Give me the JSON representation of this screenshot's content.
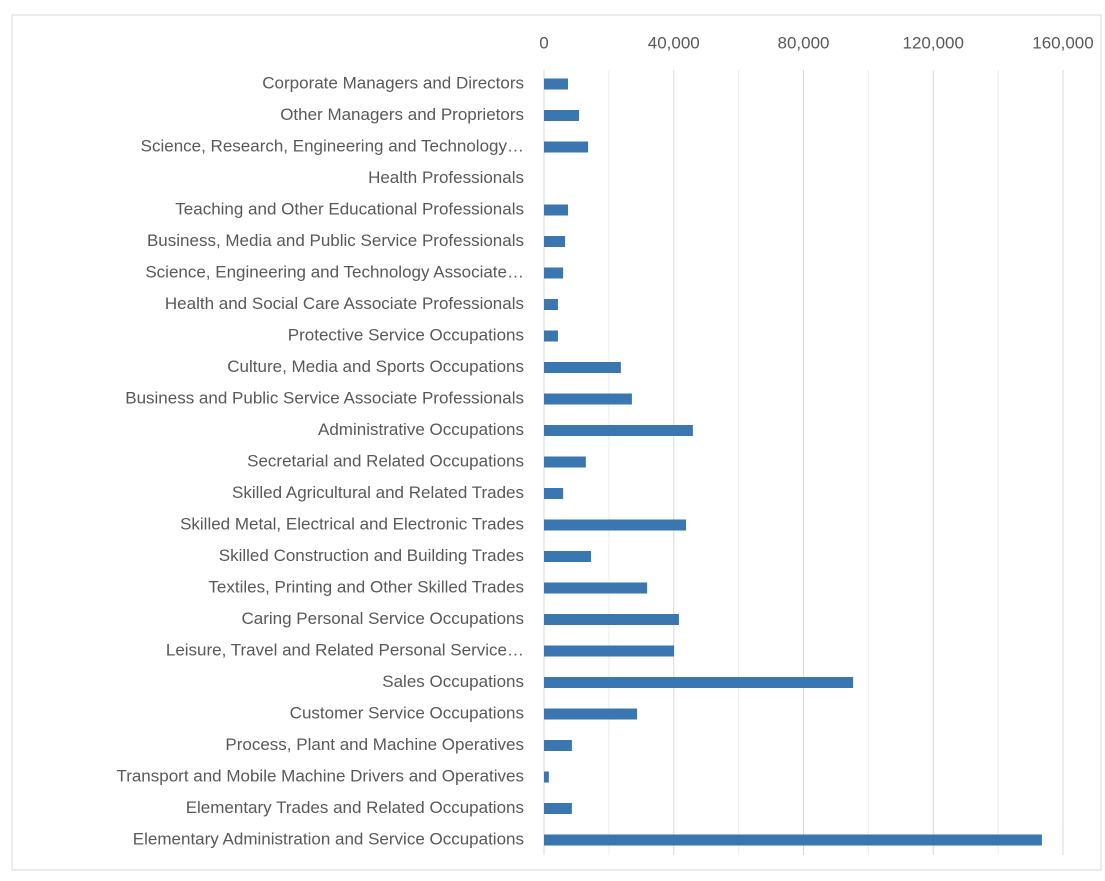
{
  "chart_data": {
    "type": "bar",
    "orientation": "horizontal",
    "color": "#3a76b0",
    "categories": [
      "Corporate Managers and Directors",
      "Other Managers and Proprietors",
      "Science, Research, Engineering and Technology…",
      "Health Professionals",
      "Teaching and Other Educational Professionals",
      "Business, Media and Public Service Professionals",
      "Science, Engineering and Technology Associate…",
      "Health and Social Care Associate Professionals",
      "Protective Service Occupations",
      "Culture, Media and Sports Occupations",
      "Business and Public Service Associate Professionals",
      "Administrative Occupations",
      "Secretarial and Related Occupations",
      "Skilled Agricultural and Related Trades",
      "Skilled Metal, Electrical and Electronic Trades",
      "Skilled Construction and Building Trades",
      "Textiles, Printing and Other Skilled Trades",
      "Caring Personal Service Occupations",
      "Leisure, Travel and Related Personal Service…",
      "Sales Occupations",
      "Customer Service Occupations",
      "Process, Plant and Machine Operatives",
      "Transport and Mobile Machine Drivers and Operatives",
      "Elementary Trades and Related Occupations",
      "Elementary Administration and Service Occupations"
    ],
    "values": [
      7400,
      10800,
      13600,
      0,
      7400,
      6500,
      5900,
      4300,
      4300,
      23700,
      27100,
      45900,
      12900,
      5900,
      43800,
      14500,
      31800,
      41600,
      40100,
      95300,
      28700,
      8600,
      1500,
      8600,
      153500
    ],
    "xlim": [
      0,
      160000
    ],
    "xticks": [
      0,
      {
        "value": 40000,
        "label": "40,000"
      },
      {
        "value": 80000,
        "label": "80,000"
      },
      {
        "value": 120000,
        "label": "120,000"
      },
      {
        "value": 160000,
        "label": "160,000"
      }
    ],
    "minor_xticks": [
      20000,
      60000,
      100000,
      140000
    ],
    "grid": true
  }
}
